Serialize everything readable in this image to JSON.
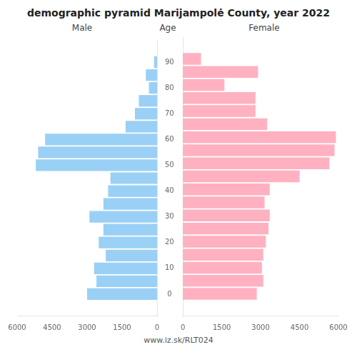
{
  "chart_data": {
    "type": "bar",
    "orientation": "horizontal",
    "title": "demographic pyramid Marijampolė County, year 2022",
    "ylabel": "Age",
    "footer": "www.iz.sk/RLT024",
    "y": [
      0,
      5,
      10,
      15,
      20,
      25,
      30,
      35,
      40,
      45,
      50,
      55,
      60,
      65,
      70,
      75,
      80,
      85,
      90
    ],
    "series": [
      {
        "name": "Male",
        "values": [
          3000,
          2600,
          2700,
          2200,
          2500,
          2300,
          2900,
          2300,
          2100,
          2000,
          5200,
          5100,
          4800,
          1350,
          950,
          780,
          350,
          480,
          130
        ]
      },
      {
        "name": "Female",
        "values": [
          2850,
          3100,
          3050,
          3100,
          3200,
          3300,
          3350,
          3150,
          3350,
          4500,
          5650,
          5850,
          5900,
          3250,
          2800,
          2800,
          1600,
          2900,
          700
        ]
      }
    ],
    "xlim": [
      0,
      6000
    ],
    "xticks": [
      0,
      1500,
      3000,
      4500,
      6000
    ],
    "ylim": [
      -3,
      93
    ],
    "yticks": [
      0,
      10,
      20,
      30,
      40,
      50,
      60,
      70,
      80,
      90
    ],
    "grid": false
  }
}
